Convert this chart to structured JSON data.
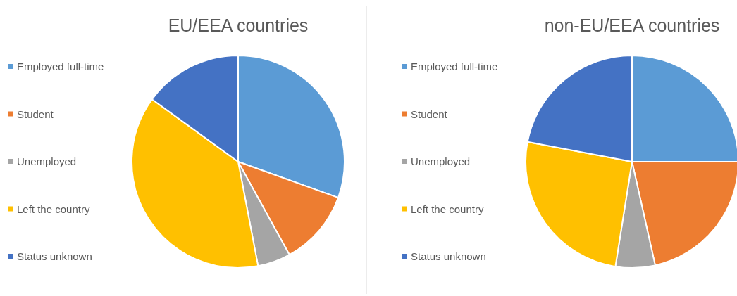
{
  "chart_data": [
    {
      "type": "pie",
      "title": "EU/EEA countries",
      "categories": [
        "Employed full-time",
        "Student",
        "Unemployed",
        "Left the country",
        "Status unknown"
      ],
      "values": [
        30.5,
        11.5,
        5,
        38,
        15
      ],
      "colors": [
        "#5b9bd5",
        "#ed7d31",
        "#a5a5a5",
        "#ffc000",
        "#4472c4"
      ],
      "legend": "left"
    },
    {
      "type": "pie",
      "title": "non-EU/EEA countries",
      "categories": [
        "Employed full-time",
        "Student",
        "Unemployed",
        "Left the country",
        "Status unknown"
      ],
      "values": [
        25,
        21.5,
        6,
        25.5,
        22
      ],
      "colors": [
        "#5b9bd5",
        "#ed7d31",
        "#a5a5a5",
        "#ffc000",
        "#4472c4"
      ],
      "legend": "left"
    }
  ]
}
